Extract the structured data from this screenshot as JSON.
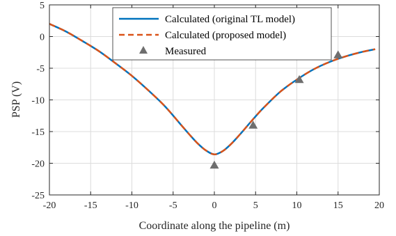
{
  "chart_data": {
    "type": "line",
    "title": "",
    "xlabel": "Coordinate along the pipeline (m)",
    "ylabel": "PSP (V)",
    "xlim": [
      -20,
      20
    ],
    "ylim": [
      -25,
      5
    ],
    "xticks": [
      -20,
      -15,
      -10,
      -5,
      0,
      5,
      10,
      15,
      20
    ],
    "yticks": [
      -25,
      -20,
      -15,
      -10,
      -5,
      0,
      5
    ],
    "xtick_labels": [
      "-20",
      "-15",
      "-10",
      "-5",
      "0",
      "5",
      "10",
      "15",
      "20"
    ],
    "ytick_labels": [
      "-25",
      "-20",
      "-15",
      "-10",
      "-5",
      "0",
      "5"
    ],
    "grid": true,
    "legend_position": "top-right",
    "series": [
      {
        "name": "Calculated (original TL model)",
        "style": "solid",
        "color": "#0072BD",
        "x": [
          -20,
          -18,
          -16,
          -14,
          -12,
          -10,
          -8,
          -6,
          -4,
          -3,
          -2,
          -1,
          0,
          1,
          2,
          3,
          4,
          5,
          6,
          8,
          10,
          12,
          14,
          16,
          18,
          19.5
        ],
        "y": [
          2.0,
          0.8,
          -0.7,
          -2.3,
          -4.2,
          -6.2,
          -8.5,
          -11.0,
          -14.0,
          -15.5,
          -16.9,
          -18.0,
          -18.6,
          -18.1,
          -17.0,
          -15.6,
          -14.1,
          -12.6,
          -11.2,
          -8.7,
          -6.8,
          -5.2,
          -4.0,
          -3.1,
          -2.4,
          -2.0
        ]
      },
      {
        "name": "Calculated (proposed model)",
        "style": "dashed",
        "color": "#D95319",
        "x": [
          -20,
          -18,
          -16,
          -14,
          -12,
          -10,
          -8,
          -6,
          -4,
          -3,
          -2,
          -1,
          0,
          1,
          2,
          3,
          4,
          5,
          6,
          8,
          10,
          12,
          14,
          16,
          18,
          19.5
        ],
        "y": [
          2.0,
          0.8,
          -0.7,
          -2.3,
          -4.2,
          -6.2,
          -8.5,
          -11.0,
          -14.0,
          -15.5,
          -16.9,
          -18.0,
          -18.6,
          -18.1,
          -17.0,
          -15.6,
          -14.1,
          -12.6,
          -11.2,
          -8.7,
          -6.8,
          -5.2,
          -4.0,
          -3.1,
          -2.4,
          -2.0
        ]
      },
      {
        "name": "Measured",
        "style": "marker-triangle",
        "color": "#6e6e6e",
        "x": [
          0,
          4.7,
          10.3,
          15.0
        ],
        "y": [
          -20.3,
          -14.0,
          -6.8,
          -2.9
        ]
      }
    ]
  }
}
